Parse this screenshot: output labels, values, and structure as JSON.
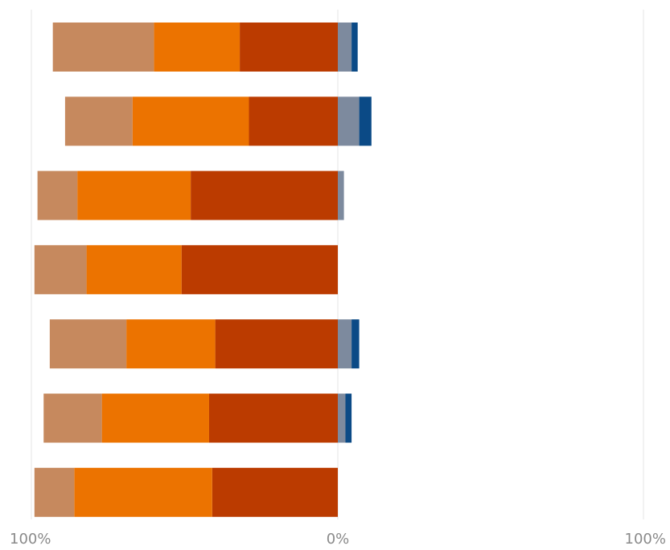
{
  "chart_data": {
    "type": "bar",
    "orientation": "horizontal",
    "stacking": "diverging",
    "title": "",
    "xlabel": "",
    "ylabel": "",
    "xlim": [
      -100,
      100
    ],
    "x_tick_labels": [
      "100%",
      "0%",
      "100%"
    ],
    "x_tick_values": [
      -100,
      0,
      100
    ],
    "grid": true,
    "legend": "none",
    "rows": 7,
    "series": [
      {
        "color": "#bb3b00",
        "side": "negative",
        "values": [
          32,
          29,
          48,
          51,
          40,
          42,
          41
        ]
      },
      {
        "color": "#ec7300",
        "side": "negative",
        "values": [
          28,
          38,
          37,
          31,
          29,
          35,
          45
        ]
      },
      {
        "color": "#c6895e",
        "side": "negative",
        "values": [
          33,
          22,
          13,
          17,
          25,
          19,
          13
        ]
      },
      {
        "color": "#7d8a9e",
        "side": "positive",
        "values": [
          4.5,
          7,
          2,
          0,
          4.5,
          2.5,
          0
        ]
      },
      {
        "color": "#0b4a86",
        "side": "positive",
        "values": [
          2,
          4,
          0,
          0,
          2.5,
          2,
          0
        ]
      }
    ]
  }
}
